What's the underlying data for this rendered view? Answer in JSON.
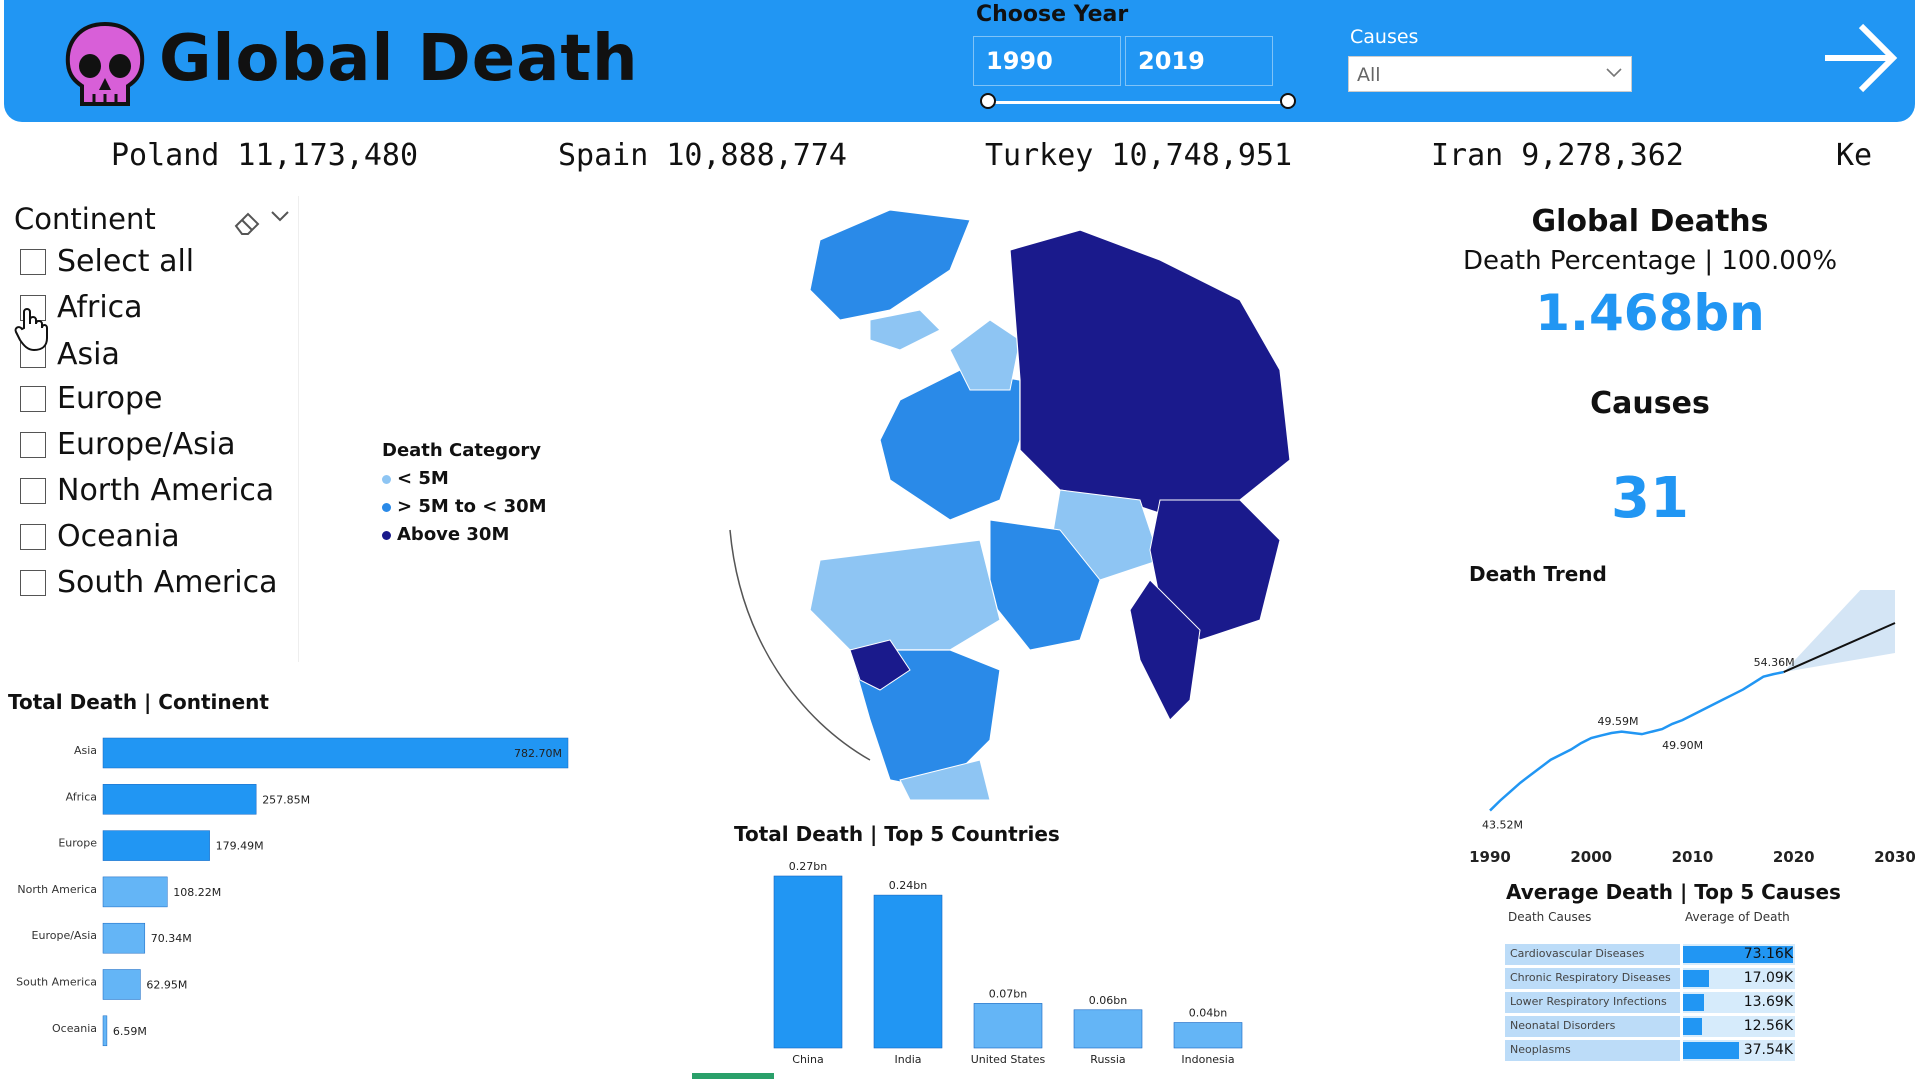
{
  "header": {
    "title": "Global Death",
    "choose_year_label": "Choose Year",
    "year_start": "1990",
    "year_end": "2019",
    "causes_label": "Causes",
    "causes_value": "All",
    "colors": {
      "header_bg": "#2196f3",
      "skull": "#d85fd8"
    }
  },
  "ticker": [
    {
      "text": "Poland 11,173,480"
    },
    {
      "text": "Spain 10,888,774"
    },
    {
      "text": "Turkey 10,748,951"
    },
    {
      "text": "Iran 9,278,362"
    },
    {
      "text": "Ke"
    }
  ],
  "slicer": {
    "title": "Continent",
    "items": [
      "Select all",
      "Africa",
      "Asia",
      "Europe",
      "Europe/Asia",
      "North America",
      "Oceania",
      "South America"
    ]
  },
  "legend": {
    "title": "Death Category",
    "items": [
      {
        "label": "< 5M",
        "color": "#8ec5f3"
      },
      {
        "label": "> 5M to < 30M",
        "color": "#2a8ae8"
      },
      {
        "label": "Above 30M",
        "color": "#1a1a8c"
      }
    ]
  },
  "kpi": {
    "title": "Global Deaths",
    "subtitle": "Death Percentage | 100.00%",
    "value": "1.468bn",
    "causes_title": "Causes",
    "causes_value": "31",
    "accent": "#2196f3"
  },
  "chart_data": [
    {
      "type": "bar",
      "orientation": "horizontal",
      "title": "Total Death | Continent",
      "categories": [
        "Asia",
        "Africa",
        "Europe",
        "North America",
        "Europe/Asia",
        "South America",
        "Oceania"
      ],
      "values": [
        782.7,
        257.85,
        179.49,
        108.22,
        70.34,
        62.95,
        6.59
      ],
      "labels": [
        "782.70M",
        "257.85M",
        "179.49M",
        "108.22M",
        "70.34M",
        "62.95M",
        "6.59M"
      ],
      "unit": "M"
    },
    {
      "type": "bar",
      "title": "Total Death | Top 5 Countries",
      "categories": [
        "China",
        "India",
        "United States",
        "Russia",
        "Indonesia"
      ],
      "values": [
        0.27,
        0.24,
        0.07,
        0.06,
        0.04
      ],
      "labels": [
        "0.27bn",
        "0.24bn",
        "0.07bn",
        "0.06bn",
        "0.04bn"
      ],
      "unit": "bn"
    },
    {
      "type": "line",
      "title": "Death Trend",
      "x": [
        1990,
        1991,
        1992,
        1993,
        1994,
        1995,
        1996,
        1997,
        1998,
        1999,
        2000,
        2001,
        2002,
        2003,
        2004,
        2005,
        2006,
        2007,
        2008,
        2009,
        2010,
        2011,
        2012,
        2013,
        2014,
        2015,
        2016,
        2017,
        2018,
        2019
      ],
      "y": [
        43.52,
        44.3,
        45.0,
        45.7,
        46.3,
        46.9,
        47.5,
        47.9,
        48.3,
        48.8,
        49.2,
        49.4,
        49.59,
        49.7,
        49.6,
        49.5,
        49.7,
        49.9,
        50.3,
        50.6,
        51.0,
        51.4,
        51.8,
        52.2,
        52.6,
        53.0,
        53.5,
        54.0,
        54.2,
        54.36
      ],
      "forecast_x": [
        2019,
        2030
      ],
      "forecast_y": [
        54.36,
        58.2
      ],
      "annotations": [
        "43.52M",
        "49.59M",
        "49.90M",
        "54.36M"
      ],
      "xticks": [
        1990,
        2000,
        2010,
        2020,
        2030
      ],
      "xlim": [
        1990,
        2030
      ],
      "ylim": [
        42,
        60
      ]
    },
    {
      "type": "table",
      "title": "Average Death | Top 5 Causes",
      "columns": [
        "Death Causes",
        "Average of Death"
      ],
      "rows": [
        {
          "cause": "Cardiovascular Diseases",
          "value": 73.16,
          "label": "73.16K"
        },
        {
          "cause": "Chronic Respiratory Diseases",
          "value": 17.09,
          "label": "17.09K"
        },
        {
          "cause": "Lower Respiratory Infections",
          "value": 13.69,
          "label": "13.69K"
        },
        {
          "cause": "Neonatal Disorders",
          "value": 12.56,
          "label": "12.56K"
        },
        {
          "cause": "Neoplasms",
          "value": 37.54,
          "label": "37.54K"
        }
      ]
    }
  ]
}
